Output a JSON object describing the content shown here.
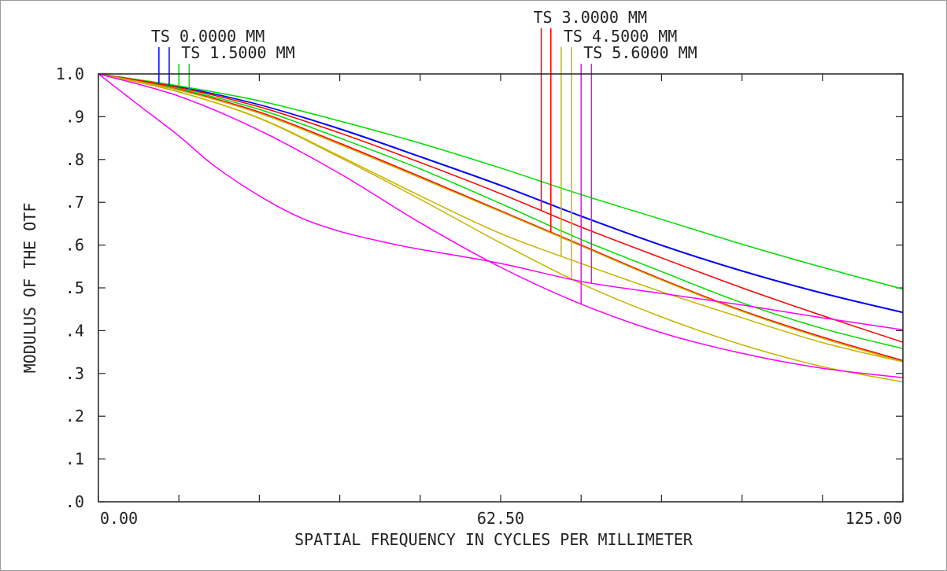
{
  "chart_data": {
    "type": "line",
    "xlabel": "SPATIAL FREQUENCY IN CYCLES PER MILLIMETER",
    "ylabel": "MODULUS OF THE OTF",
    "xlim": [
      0,
      125
    ],
    "ylim": [
      0,
      1.0
    ],
    "x_tick_labels": [
      {
        "value": 0,
        "label": "0.00"
      },
      {
        "value": 62.5,
        "label": "62.50"
      },
      {
        "value": 125,
        "label": "125.00"
      }
    ],
    "y_tick_labels": [
      {
        "value": 0.0,
        "label": ".0"
      },
      {
        "value": 0.1,
        "label": ".1"
      },
      {
        "value": 0.2,
        "label": ".2"
      },
      {
        "value": 0.3,
        "label": ".3"
      },
      {
        "value": 0.4,
        "label": ".4"
      },
      {
        "value": 0.5,
        "label": ".5"
      },
      {
        "value": 0.6,
        "label": ".6"
      },
      {
        "value": 0.7,
        "label": ".7"
      },
      {
        "value": 0.8,
        "label": ".8"
      },
      {
        "value": 0.9,
        "label": ".9"
      },
      {
        "value": 1.0,
        "label": "1.0"
      }
    ],
    "minor_tick_step": 12.5,
    "legend": [
      {
        "label": "TS 0.0000 MM",
        "color": "#0000ff",
        "marker_x": [
          9.4,
          11.0
        ]
      },
      {
        "label": "TS 1.5000 MM",
        "color": "#00dd00",
        "marker_x": [
          12.5,
          14.1
        ]
      },
      {
        "label": "TS 3.0000 MM",
        "color": "#ff0000",
        "marker_x": [
          68.8,
          70.3
        ]
      },
      {
        "label": "TS 4.5000 MM",
        "color": "#c8b400",
        "marker_x": [
          71.9,
          73.5
        ]
      },
      {
        "label": "TS 5.6000 MM",
        "color": "#ff00ff",
        "marker_x": [
          75.0,
          76.6
        ]
      }
    ],
    "series": [
      {
        "color": "#0000ff",
        "x": [
          0,
          12.5,
          25,
          37.5,
          50,
          62.5,
          75,
          87.5,
          100,
          112.5,
          125
        ],
        "y": [
          1.0,
          0.97,
          0.928,
          0.872,
          0.807,
          0.74,
          0.668,
          0.6,
          0.54,
          0.488,
          0.443
        ]
      },
      {
        "color": "#0000ff",
        "x": [
          0,
          12.5,
          25,
          37.5,
          50,
          62.5,
          75,
          87.5,
          100,
          112.5,
          125
        ],
        "y": [
          1.0,
          0.97,
          0.928,
          0.871,
          0.806,
          0.739,
          0.667,
          0.599,
          0.539,
          0.487,
          0.442
        ]
      },
      {
        "color": "#00dd00",
        "x": [
          0,
          12.5,
          25,
          37.5,
          50,
          62.5,
          75,
          87.5,
          100,
          112.5,
          125
        ],
        "y": [
          1.0,
          0.972,
          0.937,
          0.89,
          0.838,
          0.78,
          0.718,
          0.66,
          0.602,
          0.548,
          0.497
        ]
      },
      {
        "color": "#00dd00",
        "x": [
          0,
          12.5,
          25,
          37.5,
          50,
          62.5,
          75,
          87.5,
          100,
          112.5,
          125
        ],
        "y": [
          1.0,
          0.965,
          0.917,
          0.85,
          0.778,
          0.697,
          0.613,
          0.538,
          0.465,
          0.405,
          0.358
        ]
      },
      {
        "color": "#ff0000",
        "x": [
          0,
          12.5,
          25,
          37.5,
          50,
          62.5,
          75,
          87.5,
          100,
          112.5,
          125
        ],
        "y": [
          1.0,
          0.968,
          0.923,
          0.862,
          0.793,
          0.72,
          0.642,
          0.57,
          0.5,
          0.435,
          0.373
        ]
      },
      {
        "color": "#ff0000",
        "x": [
          0,
          12.5,
          25,
          37.5,
          50,
          62.5,
          75,
          87.5,
          100,
          112.5,
          125
        ],
        "y": [
          1.0,
          0.963,
          0.911,
          0.838,
          0.76,
          0.68,
          0.6,
          0.52,
          0.447,
          0.385,
          0.33
        ]
      },
      {
        "color": "#c8b400",
        "x": [
          0,
          12.5,
          25,
          37.5,
          50,
          62.5,
          75,
          87.5,
          100,
          112.5,
          125
        ],
        "y": [
          1.0,
          0.962,
          0.908,
          0.835,
          0.757,
          0.678,
          0.598,
          0.518,
          0.445,
          0.382,
          0.327
        ]
      },
      {
        "color": "#c8b400",
        "x": [
          0,
          12.5,
          25,
          37.5,
          50,
          62.5,
          75,
          87.5,
          100,
          112.5,
          125
        ],
        "y": [
          1.0,
          0.958,
          0.897,
          0.808,
          0.715,
          0.627,
          0.557,
          0.491,
          0.43,
          0.372,
          0.327
        ]
      },
      {
        "color": "#c8b400",
        "x": [
          0,
          12.5,
          25,
          37.5,
          50,
          62.5,
          75,
          87.5,
          100,
          112.5,
          125
        ],
        "y": [
          1.0,
          0.958,
          0.896,
          0.805,
          0.707,
          0.605,
          0.51,
          0.432,
          0.367,
          0.316,
          0.28
        ]
      },
      {
        "color": "#ff00ff",
        "x": [
          0,
          12.5,
          25,
          37.5,
          50,
          62.5,
          75,
          87.5,
          100,
          112.5,
          125
        ],
        "y": [
          1.0,
          0.948,
          0.868,
          0.767,
          0.652,
          0.548,
          0.462,
          0.395,
          0.347,
          0.312,
          0.29
        ]
      },
      {
        "color": "#ff00ff",
        "x": [
          0,
          6,
          12.5,
          18,
          25,
          31.25,
          37.5,
          45,
          50,
          62.5,
          75,
          87.5,
          100,
          112.5,
          125
        ],
        "y": [
          1.0,
          0.93,
          0.855,
          0.785,
          0.715,
          0.665,
          0.632,
          0.605,
          0.59,
          0.557,
          0.515,
          0.487,
          0.46,
          0.43,
          0.402
        ]
      }
    ]
  }
}
